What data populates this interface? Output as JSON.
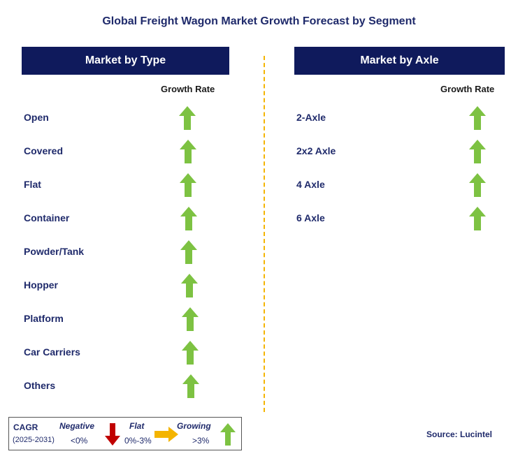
{
  "title": "Global Freight Wagon Market Growth Forecast by Segment",
  "left_panel": {
    "header": "Market by Type",
    "column_label": "Growth Rate",
    "rows": [
      {
        "label": "Open",
        "trend": "growing"
      },
      {
        "label": "Covered",
        "trend": "growing"
      },
      {
        "label": "Flat",
        "trend": "growing"
      },
      {
        "label": "Container",
        "trend": "growing"
      },
      {
        "label": "Powder/Tank",
        "trend": "growing"
      },
      {
        "label": "Hopper",
        "trend": "growing"
      },
      {
        "label": "Platform",
        "trend": "growing"
      },
      {
        "label": "Car Carriers",
        "trend": "growing"
      },
      {
        "label": "Others",
        "trend": "growing"
      }
    ]
  },
  "right_panel": {
    "header": "Market by Axle",
    "column_label": "Growth Rate",
    "rows": [
      {
        "label": "2-Axle",
        "trend": "growing"
      },
      {
        "label": "2x2 Axle",
        "trend": "growing"
      },
      {
        "label": "4 Axle",
        "trend": "growing"
      },
      {
        "label": "6 Axle",
        "trend": "growing"
      }
    ]
  },
  "legend": {
    "cagr_label": "CAGR",
    "period": "(2025-2031)",
    "negative_label": "Negative",
    "negative_range": "<0%",
    "flat_label": "Flat",
    "flat_range": "0%-3%",
    "growing_label": "Growing",
    "growing_range": ">3%"
  },
  "source": "Source: Lucintel",
  "colors": {
    "header_bg": "#0f1a5c",
    "text_navy": "#1f2a6b",
    "up_arrow": "#7dc242",
    "down_arrow": "#c00000",
    "flat_arrow": "#f4b400",
    "divider": "#f4b400"
  },
  "icons": {
    "growing": "up-arrow-icon",
    "negative": "down-arrow-icon",
    "flat": "right-arrow-icon"
  }
}
